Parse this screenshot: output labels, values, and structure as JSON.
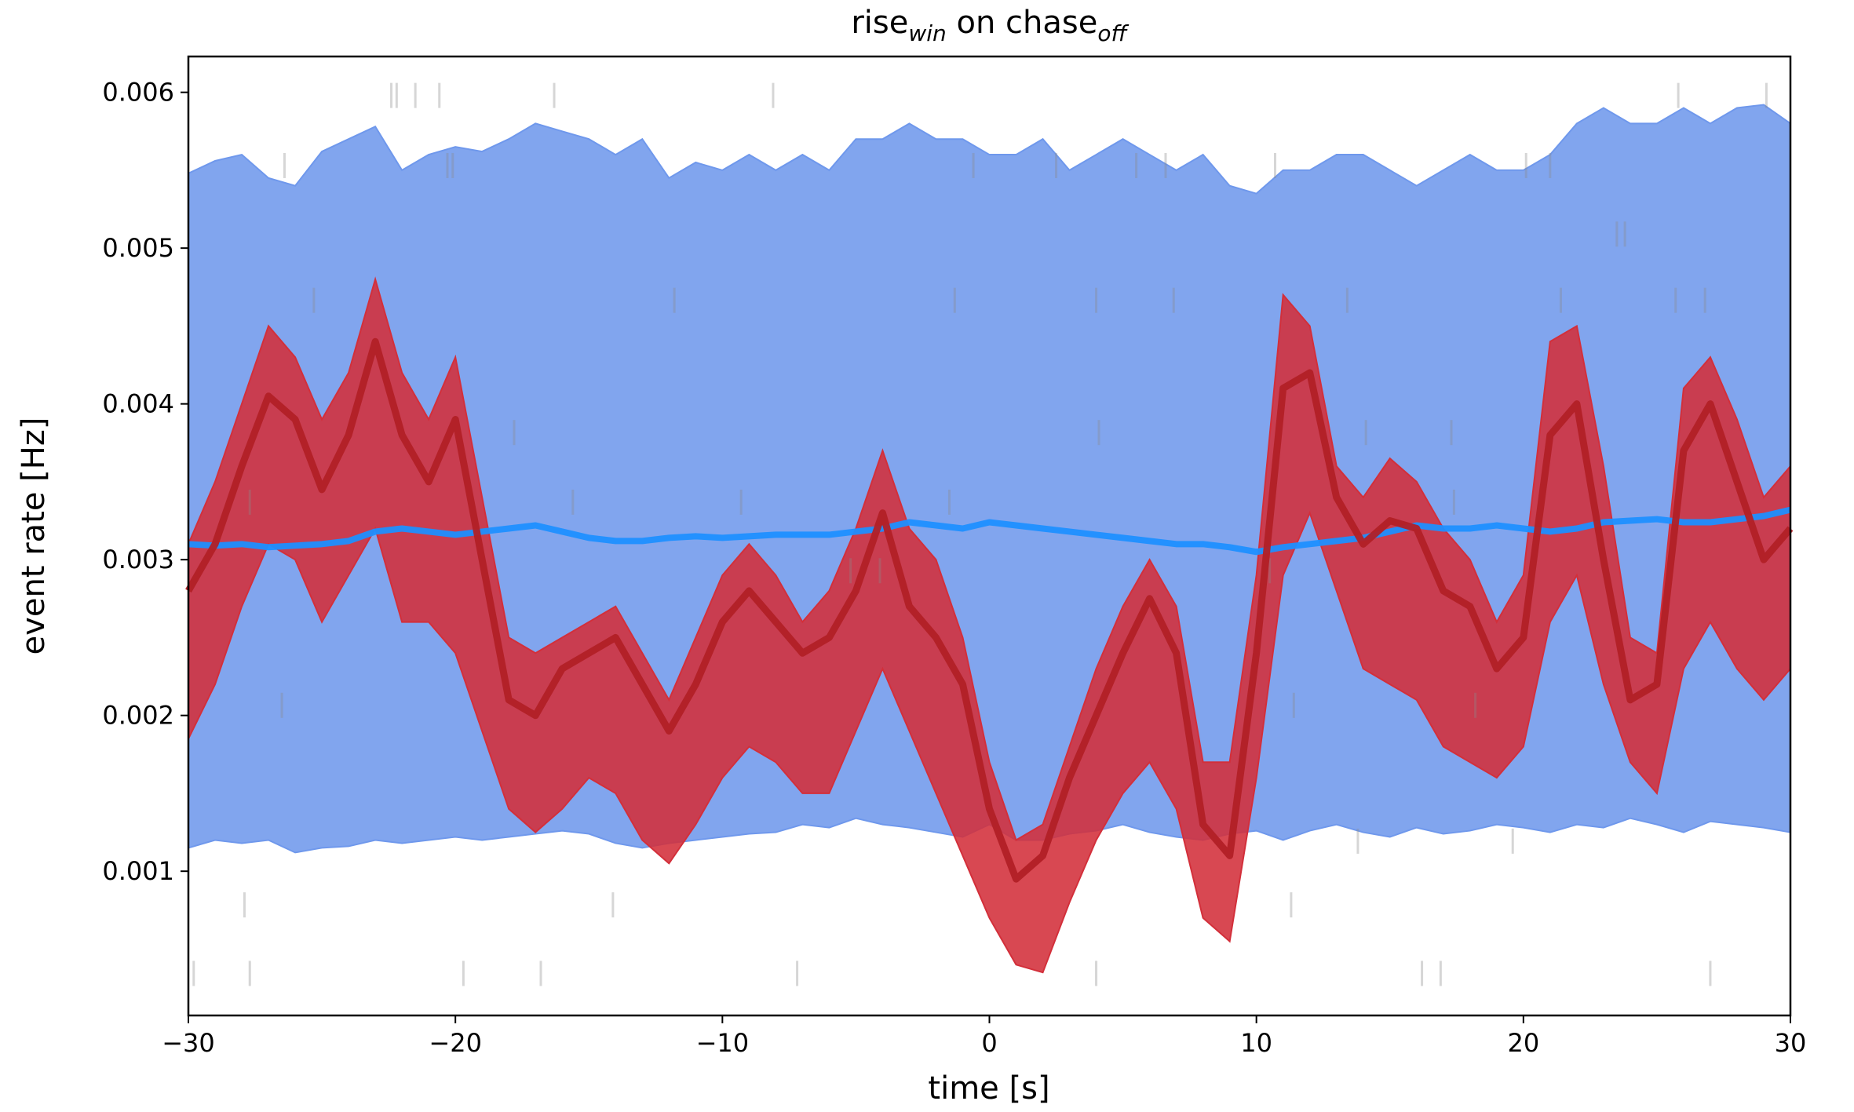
{
  "chart_data": {
    "type": "line",
    "title": [
      "rise",
      "win",
      " on chase",
      "off"
    ],
    "xlabel": "time [s]",
    "ylabel": "event rate [Hz]",
    "x": [
      -30,
      -29,
      -28,
      -27,
      -26,
      -25,
      -24,
      -23,
      -22,
      -21,
      -20,
      -19,
      -18,
      -17,
      -16,
      -15,
      -14,
      -13,
      -12,
      -11,
      -10,
      -9,
      -8,
      -7,
      -6,
      -5,
      -4,
      -3,
      -2,
      -1,
      0,
      1,
      2,
      3,
      4,
      5,
      6,
      7,
      8,
      9,
      10,
      11,
      12,
      13,
      14,
      15,
      16,
      17,
      18,
      19,
      20,
      21,
      22,
      23,
      24,
      25,
      26,
      27,
      28,
      29,
      30
    ],
    "bands": [
      {
        "color": "#6f98ec",
        "upper": [
          0.00548,
          0.00556,
          0.0056,
          0.00545,
          0.0054,
          0.00562,
          0.0057,
          0.00578,
          0.0055,
          0.0056,
          0.00565,
          0.00562,
          0.0057,
          0.0058,
          0.00575,
          0.0057,
          0.0056,
          0.0057,
          0.00545,
          0.00555,
          0.0055,
          0.0056,
          0.0055,
          0.0056,
          0.0055,
          0.0057,
          0.0057,
          0.0058,
          0.0057,
          0.0057,
          0.0056,
          0.0056,
          0.0057,
          0.0055,
          0.0056,
          0.0057,
          0.0056,
          0.0055,
          0.0056,
          0.0054,
          0.00535,
          0.0055,
          0.0055,
          0.0056,
          0.0056,
          0.0055,
          0.0054,
          0.0055,
          0.0056,
          0.0055,
          0.0055,
          0.0056,
          0.0058,
          0.0059,
          0.0058,
          0.0058,
          0.0059,
          0.0058,
          0.0059,
          0.00592,
          0.0058
        ],
        "lower": [
          0.00115,
          0.0012,
          0.00118,
          0.0012,
          0.00112,
          0.00115,
          0.00116,
          0.0012,
          0.00118,
          0.0012,
          0.00122,
          0.0012,
          0.00122,
          0.00124,
          0.00126,
          0.00124,
          0.00118,
          0.00115,
          0.00118,
          0.0012,
          0.00122,
          0.00124,
          0.00125,
          0.0013,
          0.00128,
          0.00134,
          0.0013,
          0.00128,
          0.00125,
          0.00122,
          0.0013,
          0.0012,
          0.0012,
          0.00124,
          0.00126,
          0.0013,
          0.00125,
          0.00122,
          0.0012,
          0.00124,
          0.00126,
          0.0012,
          0.00126,
          0.0013,
          0.00125,
          0.00122,
          0.00128,
          0.00124,
          0.00126,
          0.0013,
          0.00128,
          0.00125,
          0.0013,
          0.00128,
          0.00134,
          0.0013,
          0.00125,
          0.00132,
          0.0013,
          0.00128,
          0.00125
        ]
      },
      {
        "color": "#d32f3a",
        "upper": [
          0.0031,
          0.0035,
          0.004,
          0.0045,
          0.0043,
          0.0039,
          0.0042,
          0.0048,
          0.0042,
          0.0039,
          0.0043,
          0.0034,
          0.0025,
          0.0024,
          0.0025,
          0.0026,
          0.0027,
          0.0024,
          0.0021,
          0.0025,
          0.0029,
          0.0031,
          0.0029,
          0.0026,
          0.0028,
          0.0032,
          0.0037,
          0.0032,
          0.003,
          0.0025,
          0.0017,
          0.0012,
          0.0013,
          0.0018,
          0.0023,
          0.0027,
          0.003,
          0.0027,
          0.0017,
          0.0017,
          0.0029,
          0.0047,
          0.0045,
          0.0036,
          0.0034,
          0.00365,
          0.0035,
          0.0032,
          0.003,
          0.0026,
          0.0029,
          0.0044,
          0.0045,
          0.0036,
          0.0025,
          0.0024,
          0.0041,
          0.0043,
          0.0039,
          0.0034,
          0.0036
        ],
        "lower": [
          0.00185,
          0.0022,
          0.0027,
          0.0031,
          0.003,
          0.0026,
          0.0029,
          0.0032,
          0.0026,
          0.0026,
          0.0024,
          0.0019,
          0.0014,
          0.00125,
          0.0014,
          0.0016,
          0.0015,
          0.0012,
          0.00105,
          0.0013,
          0.0016,
          0.0018,
          0.0017,
          0.0015,
          0.0015,
          0.0019,
          0.0023,
          0.0019,
          0.0015,
          0.0011,
          0.0007,
          0.0004,
          0.00035,
          0.0008,
          0.0012,
          0.0015,
          0.0017,
          0.0014,
          0.0007,
          0.00055,
          0.0016,
          0.0029,
          0.0033,
          0.0028,
          0.0023,
          0.0022,
          0.0021,
          0.0018,
          0.0017,
          0.0016,
          0.0018,
          0.0026,
          0.0029,
          0.0022,
          0.0017,
          0.0015,
          0.0023,
          0.0026,
          0.0023,
          0.0021,
          0.0023
        ]
      }
    ],
    "lines": [
      {
        "color": "#1e8fff",
        "values": [
          0.0031,
          0.00309,
          0.0031,
          0.00308,
          0.00309,
          0.0031,
          0.00312,
          0.00318,
          0.0032,
          0.00318,
          0.00316,
          0.00318,
          0.0032,
          0.00322,
          0.00318,
          0.00314,
          0.00312,
          0.00312,
          0.00314,
          0.00315,
          0.00314,
          0.00315,
          0.00316,
          0.00316,
          0.00316,
          0.00318,
          0.0032,
          0.00324,
          0.00322,
          0.0032,
          0.00324,
          0.00322,
          0.0032,
          0.00318,
          0.00316,
          0.00314,
          0.00312,
          0.0031,
          0.0031,
          0.00308,
          0.00305,
          0.00308,
          0.0031,
          0.00312,
          0.00314,
          0.00318,
          0.00322,
          0.0032,
          0.0032,
          0.00322,
          0.0032,
          0.00318,
          0.0032,
          0.00324,
          0.00325,
          0.00326,
          0.00324,
          0.00324,
          0.00326,
          0.00328,
          0.00332
        ]
      },
      {
        "color": "#b22026",
        "values": [
          0.0028,
          0.0031,
          0.0036,
          0.00405,
          0.0039,
          0.00345,
          0.0038,
          0.0044,
          0.0038,
          0.0035,
          0.0039,
          0.003,
          0.0021,
          0.002,
          0.0023,
          0.0024,
          0.0025,
          0.0022,
          0.0019,
          0.0022,
          0.0026,
          0.0028,
          0.0026,
          0.0024,
          0.0025,
          0.0028,
          0.0033,
          0.0027,
          0.0025,
          0.0022,
          0.0014,
          0.00095,
          0.0011,
          0.0016,
          0.002,
          0.0024,
          0.00275,
          0.0024,
          0.0013,
          0.0011,
          0.0024,
          0.0041,
          0.0042,
          0.0034,
          0.0031,
          0.00325,
          0.0032,
          0.0028,
          0.0027,
          0.0023,
          0.0025,
          0.0038,
          0.004,
          0.003,
          0.0021,
          0.0022,
          0.0037,
          0.004,
          0.0035,
          0.003,
          0.0032
        ]
      }
    ],
    "events": {
      "x": [
        -22.4,
        -22.2,
        -21.5,
        -20.6,
        -16.3,
        -8.1,
        25.8,
        29.1,
        -26.4,
        -20.3,
        -20.1,
        -0.6,
        2.5,
        5.5,
        6.6,
        10.7,
        20.1,
        21.0,
        23.5,
        23.8,
        -25.3,
        -11.8,
        -1.3,
        4.0,
        6.9,
        13.4,
        21.4,
        25.7,
        26.8,
        -17.8,
        4.1,
        14.1,
        17.3,
        -27.7,
        -15.6,
        -9.3,
        -1.5,
        17.4,
        -5.2,
        -4.1,
        10.5,
        -26.5,
        11.4,
        18.2,
        13.8,
        19.6,
        -27.9,
        -14.1,
        11.3,
        -29.8,
        -27.7,
        -19.7,
        -16.8,
        -7.2,
        4.0,
        16.2,
        16.9,
        27.0
      ],
      "y": [
        0.00598,
        0.00598,
        0.00598,
        0.00598,
        0.00598,
        0.00598,
        0.00598,
        0.00598,
        0.00553,
        0.00553,
        0.00553,
        0.00553,
        0.00553,
        0.00553,
        0.00553,
        0.00553,
        0.00553,
        0.00553,
        0.00509,
        0.00509,
        0.004665,
        0.004665,
        0.004665,
        0.004665,
        0.004665,
        0.004665,
        0.004665,
        0.004665,
        0.004665,
        0.003816,
        0.003816,
        0.003816,
        0.003816,
        0.003369,
        0.003369,
        0.003369,
        0.003369,
        0.003369,
        0.002929,
        0.002929,
        0.002929,
        0.002065,
        0.002065,
        0.002065,
        0.001193,
        0.001193,
        0.000784,
        0.000784,
        0.000784,
        0.000344,
        0.000344,
        0.000344,
        0.000344,
        0.000344,
        0.000344,
        0.000344,
        0.000344,
        0.000344
      ]
    },
    "event_color": "#8a8a8a",
    "xlim": [
      -30,
      30
    ],
    "xticks": [
      {
        "value": -30,
        "label": "−30"
      },
      {
        "value": -20,
        "label": "−20"
      },
      {
        "value": -10,
        "label": "−10"
      },
      0,
      10,
      20,
      30
    ],
    "ylim": [
      7.4e-05,
      0.00623
    ],
    "yticks": [
      0.001,
      0.002,
      0.003,
      0.004,
      0.005,
      0.006
    ]
  }
}
